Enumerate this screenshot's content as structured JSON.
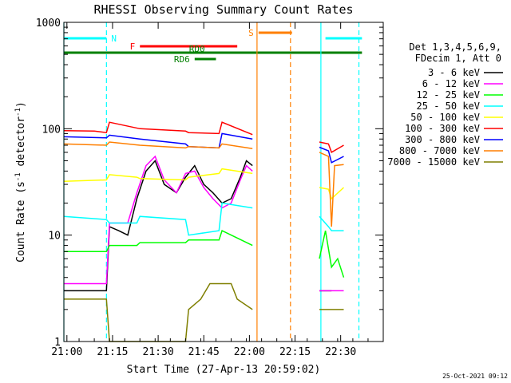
{
  "chart_data": {
    "type": "line",
    "title": "RHESSI Observing Summary Count Rates",
    "xlabel": "Start Time (27-Apr-13 20:59:02)",
    "ylabel_main": "Count Rate (s",
    "ylabel_sup1": "-1",
    "ylabel_mid": " detector",
    "ylabel_sup2": "-1",
    "ylabel_end": ")",
    "yscale": "log",
    "ylim": [
      1,
      1000
    ],
    "xlim_min": [
      0,
      105
    ],
    "yticks": [
      {
        "value": 1,
        "label": "1"
      },
      {
        "value": 10,
        "label": "10"
      },
      {
        "value": 100,
        "label": "100"
      },
      {
        "value": 1000,
        "label": "1000"
      }
    ],
    "xticks": [
      {
        "min": 1,
        "label": "21:00"
      },
      {
        "min": 16,
        "label": "21:15"
      },
      {
        "min": 31,
        "label": "21:30"
      },
      {
        "min": 46,
        "label": "21:45"
      },
      {
        "min": 61,
        "label": "22:00"
      },
      {
        "min": 76,
        "label": "22:15"
      },
      {
        "min": 91,
        "label": "22:30"
      }
    ],
    "timestamp": "25-Oct-2021 09:12",
    "legend": {
      "placement": "right",
      "header1": "Det 1,3,4,5,6,9,",
      "header2": "FDecim 1, Att 0"
    },
    "series": [
      {
        "name": "3 - 6 keV",
        "color": "#000000",
        "points": [
          [
            0,
            3
          ],
          [
            14,
            3
          ],
          [
            15,
            12
          ],
          [
            18,
            11
          ],
          [
            21,
            10
          ],
          [
            24,
            22
          ],
          [
            27,
            40
          ],
          [
            30,
            50
          ],
          [
            33,
            30
          ],
          [
            37,
            25
          ],
          [
            40,
            35
          ],
          [
            43,
            45
          ],
          [
            46,
            30
          ],
          [
            49,
            25
          ],
          [
            52,
            20
          ],
          [
            55,
            22
          ],
          [
            58,
            35
          ],
          [
            60,
            50
          ],
          [
            62,
            45
          ]
        ]
      },
      {
        "name": "6 - 12 keV",
        "color": "#ff00ff",
        "points": [
          [
            0,
            3.5
          ],
          [
            14,
            3.5
          ],
          [
            15,
            13
          ],
          [
            21,
            13
          ],
          [
            24,
            25
          ],
          [
            27,
            45
          ],
          [
            30,
            55
          ],
          [
            33,
            33
          ],
          [
            37,
            25
          ],
          [
            40,
            38
          ],
          [
            43,
            40
          ],
          [
            46,
            28
          ],
          [
            49,
            22
          ],
          [
            52,
            18
          ],
          [
            55,
            20
          ],
          [
            58,
            33
          ],
          [
            60,
            45
          ],
          [
            62,
            40
          ]
        ]
      },
      {
        "name": "12 - 25 keV",
        "color": "#00ff00",
        "points": [
          [
            0,
            7
          ],
          [
            14,
            7
          ],
          [
            15,
            8
          ],
          [
            24,
            8
          ],
          [
            25,
            8.5
          ],
          [
            40,
            8.5
          ],
          [
            41,
            9
          ],
          [
            51,
            9
          ],
          [
            52,
            11
          ],
          [
            62,
            8
          ]
        ]
      },
      {
        "name": "25 - 50 keV",
        "color": "#00ffff",
        "points": [
          [
            0,
            15
          ],
          [
            14,
            14
          ],
          [
            15,
            13
          ],
          [
            24,
            13
          ],
          [
            25,
            15
          ],
          [
            40,
            14
          ],
          [
            41,
            10
          ],
          [
            51,
            11
          ],
          [
            52,
            20
          ],
          [
            62,
            18
          ]
        ]
      },
      {
        "name": "50 - 100 keV",
        "color": "#ffff00",
        "points": [
          [
            0,
            32
          ],
          [
            14,
            33
          ],
          [
            15,
            37
          ],
          [
            24,
            35
          ],
          [
            25,
            34
          ],
          [
            40,
            33
          ],
          [
            41,
            35
          ],
          [
            51,
            38
          ],
          [
            52,
            42
          ],
          [
            62,
            38
          ]
        ]
      },
      {
        "name": "100 - 300 keV",
        "color": "#ff0000",
        "points": [
          [
            0,
            96
          ],
          [
            10,
            95
          ],
          [
            14,
            92
          ],
          [
            15,
            115
          ],
          [
            25,
            100
          ],
          [
            40,
            95
          ],
          [
            41,
            92
          ],
          [
            51,
            90
          ],
          [
            52,
            115
          ],
          [
            62,
            88
          ]
        ]
      },
      {
        "name": "300 - 800 keV",
        "color": "#0000ff",
        "points": [
          [
            0,
            84
          ],
          [
            14,
            82
          ],
          [
            15,
            87
          ],
          [
            25,
            80
          ],
          [
            40,
            72
          ],
          [
            41,
            68
          ],
          [
            51,
            66
          ],
          [
            52,
            90
          ],
          [
            62,
            80
          ]
        ]
      },
      {
        "name": "800 - 7000 keV",
        "color": "#ff7f00",
        "points": [
          [
            0,
            72
          ],
          [
            14,
            70
          ],
          [
            15,
            75
          ],
          [
            25,
            70
          ],
          [
            40,
            66
          ],
          [
            41,
            68
          ],
          [
            51,
            66
          ],
          [
            52,
            72
          ],
          [
            62,
            65
          ]
        ]
      },
      {
        "name": "7000 - 15000 keV",
        "color": "#7f7f00",
        "points": [
          [
            0,
            2.5
          ],
          [
            14,
            2.5
          ],
          [
            15,
            1
          ],
          [
            25,
            1
          ],
          [
            40,
            1
          ],
          [
            41,
            2
          ],
          [
            45,
            2.5
          ],
          [
            48,
            3.5
          ],
          [
            55,
            3.5
          ],
          [
            57,
            2.5
          ],
          [
            62,
            2
          ]
        ]
      }
    ],
    "series_late": [
      {
        "color": "#000000",
        "points": [
          [
            84,
            3
          ],
          [
            88,
            3
          ]
        ]
      },
      {
        "color": "#00ff00",
        "points": [
          [
            84,
            6
          ],
          [
            86,
            11
          ],
          [
            88,
            5
          ],
          [
            90,
            6
          ],
          [
            92,
            4
          ]
        ]
      },
      {
        "color": "#00ffff",
        "points": [
          [
            84,
            15
          ],
          [
            87,
            12
          ],
          [
            88,
            11
          ],
          [
            92,
            11
          ]
        ]
      },
      {
        "color": "#ffff00",
        "points": [
          [
            84,
            28
          ],
          [
            87,
            27
          ],
          [
            88,
            22
          ],
          [
            92,
            28
          ]
        ]
      },
      {
        "color": "#ff0000",
        "points": [
          [
            84,
            75
          ],
          [
            87,
            72
          ],
          [
            88,
            60
          ],
          [
            92,
            70
          ]
        ]
      },
      {
        "color": "#0000ff",
        "points": [
          [
            84,
            67
          ],
          [
            87,
            62
          ],
          [
            88,
            48
          ],
          [
            92,
            55
          ]
        ]
      },
      {
        "color": "#ff7f00",
        "points": [
          [
            84,
            60
          ],
          [
            87,
            55
          ],
          [
            88,
            12
          ],
          [
            89,
            45
          ],
          [
            92,
            46
          ]
        ]
      },
      {
        "color": "#ff00ff",
        "points": [
          [
            84,
            3
          ],
          [
            92,
            3
          ]
        ]
      },
      {
        "color": "#7f7f00",
        "points": [
          [
            84,
            2
          ],
          [
            92,
            2
          ]
        ]
      }
    ],
    "flag_bars": [
      {
        "label": "N",
        "color": "#00ffff",
        "y": 48,
        "start": 0,
        "end": 14
      },
      {
        "label": "",
        "color": "#00ffff",
        "y": 48,
        "start": 86,
        "end": 98
      },
      {
        "label": "F",
        "color": "#ff0000",
        "y": 58,
        "start": 25,
        "end": 57
      },
      {
        "label": "S",
        "color": "#ff7f00",
        "y": 41,
        "start": 64,
        "end": 75
      },
      {
        "label": "RD0",
        "color": "#008000",
        "y": 66,
        "start": 0,
        "end": 98
      },
      {
        "label": "RD6",
        "color": "#008000",
        "y": 74,
        "start": 43,
        "end": 50
      }
    ],
    "vlines": [
      {
        "min": 0,
        "color": "#00ffff",
        "style": "solid"
      },
      {
        "min": 14,
        "color": "#00ffff",
        "style": "dashed"
      },
      {
        "min": 63.5,
        "color": "#ff7f00",
        "style": "solid"
      },
      {
        "min": 74.5,
        "color": "#ff7f00",
        "style": "dashed"
      },
      {
        "min": 84.5,
        "color": "#00ffff",
        "style": "solid"
      },
      {
        "min": 97,
        "color": "#00ffff",
        "style": "dashed"
      }
    ]
  }
}
